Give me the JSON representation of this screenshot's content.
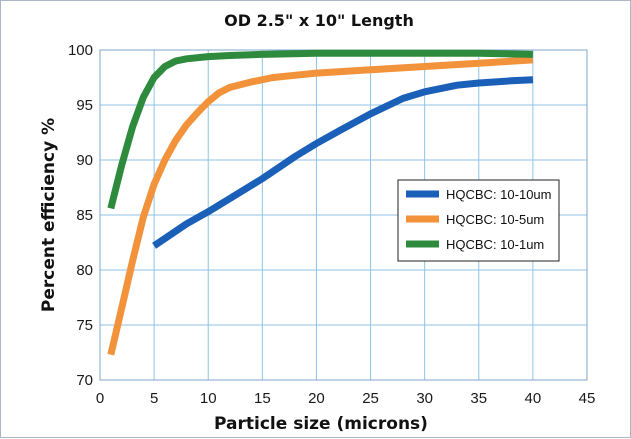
{
  "chart_data": {
    "type": "line",
    "title": "OD 2.5\" x 10\" Length",
    "xlabel": "Particle size (microns)",
    "ylabel": "Percent efficiency %",
    "xlim": [
      0,
      45
    ],
    "ylim": [
      70,
      100
    ],
    "xticks": [
      0,
      5,
      10,
      15,
      20,
      25,
      30,
      35,
      40,
      45
    ],
    "yticks": [
      70,
      75,
      80,
      85,
      90,
      95,
      100
    ],
    "grid": true,
    "grid_color": "#8fc3e6",
    "plot_background": "#ffffff",
    "legend_position": "center-right",
    "series": [
      {
        "name": "HQCBC: 10-10um",
        "color": "#1a5fb8",
        "x": [
          5,
          8,
          10,
          12,
          15,
          18,
          20,
          22,
          25,
          28,
          30,
          33,
          35,
          38,
          40
        ],
        "y": [
          82.2,
          84.2,
          85.3,
          86.5,
          88.3,
          90.3,
          91.5,
          92.6,
          94.2,
          95.6,
          96.2,
          96.8,
          97.0,
          97.2,
          97.3
        ]
      },
      {
        "name": "HQCBC: 10-5um",
        "color": "#f2923a",
        "x": [
          1,
          2,
          3,
          4,
          5,
          6,
          7,
          8,
          9,
          10,
          11,
          12,
          14,
          16,
          18,
          20,
          25,
          30,
          35,
          40
        ],
        "y": [
          72.3,
          76.5,
          80.8,
          84.8,
          87.8,
          90.0,
          91.8,
          93.2,
          94.3,
          95.3,
          96.1,
          96.6,
          97.1,
          97.5,
          97.7,
          97.9,
          98.2,
          98.5,
          98.8,
          99.1
        ]
      },
      {
        "name": "HQCBC: 10-1um",
        "color": "#2e8b3d",
        "x": [
          1,
          2,
          3,
          4,
          5,
          6,
          7,
          8,
          10,
          12,
          15,
          20,
          25,
          30,
          35,
          40
        ],
        "y": [
          85.6,
          89.5,
          93.0,
          95.7,
          97.5,
          98.5,
          99.0,
          99.2,
          99.4,
          99.5,
          99.6,
          99.7,
          99.7,
          99.7,
          99.7,
          99.6
        ]
      }
    ]
  }
}
